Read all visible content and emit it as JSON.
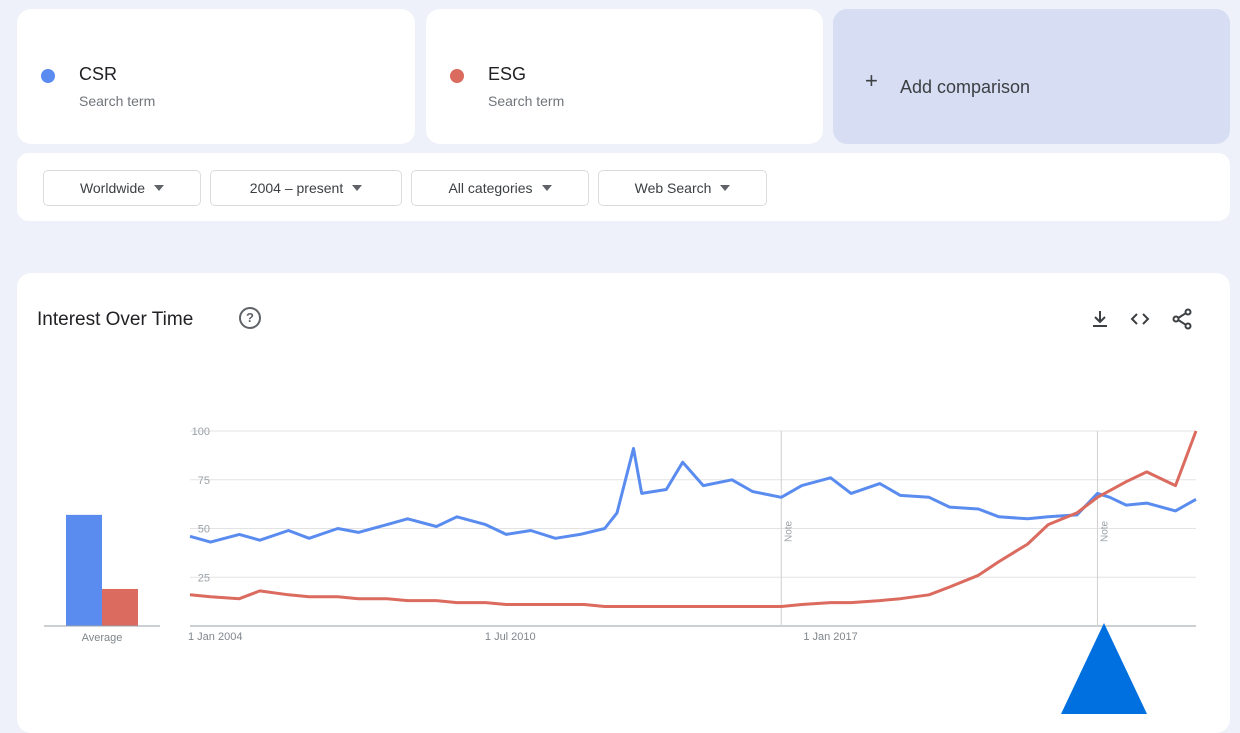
{
  "terms": [
    {
      "name": "CSR",
      "subtitle": "Search term",
      "color": "#5a8cf0"
    },
    {
      "name": "ESG",
      "subtitle": "Search term",
      "color": "#db6a5f"
    }
  ],
  "add_comparison": {
    "icon": "plus-icon",
    "label": "Add comparison"
  },
  "filters": [
    {
      "label": "Worldwide"
    },
    {
      "label": "2004 – present"
    },
    {
      "label": "All categories"
    },
    {
      "label": "Web Search"
    }
  ],
  "chart_card": {
    "title": "Interest Over Time",
    "help_icon": "help-icon",
    "actions": [
      "download-icon",
      "embed-code-icon",
      "share-icon"
    ]
  },
  "annotation": {
    "icon": "triangle-pointer-icon",
    "color": "#0070e0"
  },
  "chart_data": [
    {
      "type": "bar",
      "categories": [
        "CSR",
        "ESG"
      ],
      "values": [
        57,
        19
      ],
      "xlabel": "Average",
      "ylim": [
        0,
        100
      ]
    },
    {
      "type": "line",
      "x_range": [
        "2004-01",
        "2024-06"
      ],
      "x_ticks": [
        "1 Jan 2004",
        "1 Jul 2010",
        "1 Jan 2017"
      ],
      "y_ticks": [
        25,
        50,
        75,
        100
      ],
      "ylim": [
        0,
        100
      ],
      "notes": [
        {
          "date": "2016-01",
          "label": "Note"
        },
        {
          "date": "2022-06",
          "label": "Note"
        }
      ],
      "grid": true,
      "series": [
        {
          "name": "CSR",
          "points": [
            [
              "2004-01",
              46
            ],
            [
              "2004-06",
              43
            ],
            [
              "2005-01",
              47
            ],
            [
              "2005-06",
              44
            ],
            [
              "2006-01",
              49
            ],
            [
              "2006-06",
              45
            ],
            [
              "2007-01",
              50
            ],
            [
              "2007-06",
              48
            ],
            [
              "2008-01",
              52
            ],
            [
              "2008-06",
              55
            ],
            [
              "2009-01",
              51
            ],
            [
              "2009-06",
              56
            ],
            [
              "2010-01",
              52
            ],
            [
              "2010-06",
              47
            ],
            [
              "2010-12",
              49
            ],
            [
              "2011-06",
              45
            ],
            [
              "2011-12",
              47
            ],
            [
              "2012-06",
              50
            ],
            [
              "2012-09",
              58
            ],
            [
              "2013-01",
              91
            ],
            [
              "2013-03",
              68
            ],
            [
              "2013-09",
              70
            ],
            [
              "2014-01",
              84
            ],
            [
              "2014-06",
              72
            ],
            [
              "2015-01",
              75
            ],
            [
              "2015-06",
              69
            ],
            [
              "2016-01",
              66
            ],
            [
              "2016-06",
              72
            ],
            [
              "2017-01",
              76
            ],
            [
              "2017-06",
              68
            ],
            [
              "2018-01",
              73
            ],
            [
              "2018-06",
              67
            ],
            [
              "2019-01",
              66
            ],
            [
              "2019-06",
              61
            ],
            [
              "2020-01",
              60
            ],
            [
              "2020-06",
              56
            ],
            [
              "2021-01",
              55
            ],
            [
              "2021-06",
              56
            ],
            [
              "2022-01",
              57
            ],
            [
              "2022-06",
              68
            ],
            [
              "2022-09",
              66
            ],
            [
              "2023-01",
              62
            ],
            [
              "2023-06",
              63
            ],
            [
              "2024-01",
              59
            ],
            [
              "2024-06",
              65
            ]
          ]
        },
        {
          "name": "ESG",
          "points": [
            [
              "2004-01",
              16
            ],
            [
              "2004-06",
              15
            ],
            [
              "2005-01",
              14
            ],
            [
              "2005-06",
              18
            ],
            [
              "2006-01",
              16
            ],
            [
              "2006-06",
              15
            ],
            [
              "2007-01",
              15
            ],
            [
              "2007-06",
              14
            ],
            [
              "2008-01",
              14
            ],
            [
              "2008-06",
              13
            ],
            [
              "2009-01",
              13
            ],
            [
              "2009-06",
              12
            ],
            [
              "2010-01",
              12
            ],
            [
              "2010-06",
              11
            ],
            [
              "2011-01",
              11
            ],
            [
              "2011-06",
              11
            ],
            [
              "2012-01",
              11
            ],
            [
              "2012-06",
              10
            ],
            [
              "2013-01",
              10
            ],
            [
              "2013-06",
              10
            ],
            [
              "2014-01",
              10
            ],
            [
              "2014-06",
              10
            ],
            [
              "2015-01",
              10
            ],
            [
              "2015-06",
              10
            ],
            [
              "2016-01",
              10
            ],
            [
              "2016-06",
              11
            ],
            [
              "2017-01",
              12
            ],
            [
              "2017-06",
              12
            ],
            [
              "2018-01",
              13
            ],
            [
              "2018-06",
              14
            ],
            [
              "2019-01",
              16
            ],
            [
              "2019-06",
              20
            ],
            [
              "2020-01",
              26
            ],
            [
              "2020-06",
              33
            ],
            [
              "2021-01",
              42
            ],
            [
              "2021-06",
              52
            ],
            [
              "2022-01",
              58
            ],
            [
              "2022-06",
              66
            ],
            [
              "2023-01",
              74
            ],
            [
              "2023-06",
              79
            ],
            [
              "2024-01",
              72
            ],
            [
              "2024-06",
              100
            ]
          ]
        }
      ]
    }
  ]
}
